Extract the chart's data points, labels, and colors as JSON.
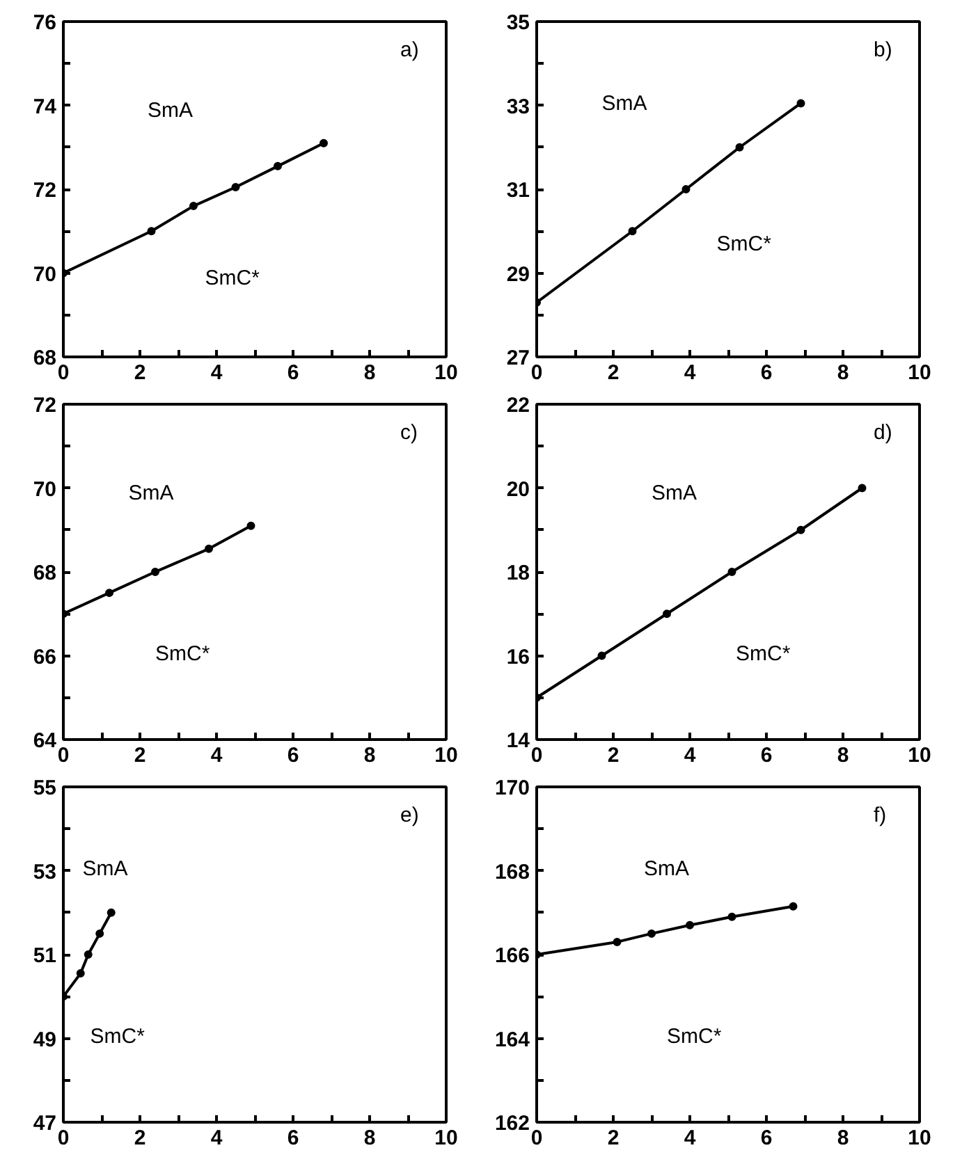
{
  "chart_data": [
    {
      "type": "line",
      "marker": "circle",
      "grid": false,
      "annotations": [
        "SmA",
        "SmC*",
        "a)"
      ],
      "xlim": [
        0,
        10
      ],
      "ylim": [
        68,
        76
      ],
      "xticks": [
        0,
        {
          "value": 1,
          "label": null
        },
        2,
        {
          "value": 3,
          "label": null
        },
        4,
        {
          "value": 5,
          "label": null
        },
        6,
        {
          "value": 7,
          "label": null
        },
        8,
        {
          "value": 9,
          "label": null
        },
        10
      ],
      "yticks": [
        68,
        {
          "value": 69,
          "label": null
        },
        70,
        {
          "value": 71,
          "label": null
        },
        72,
        {
          "value": 73,
          "label": null
        },
        74,
        {
          "value": 75,
          "label": null
        },
        76
      ],
      "series": [
        {
          "color": "#000000",
          "x": [
            0,
            2.3,
            3.4,
            4.5,
            5.6,
            6.8
          ],
          "values": [
            70.0,
            71.0,
            71.6,
            72.05,
            72.55,
            73.1
          ]
        }
      ]
    },
    {
      "type": "line",
      "marker": "circle",
      "grid": false,
      "annotations": [
        "SmA",
        "SmC*",
        "b)"
      ],
      "xlim": [
        0,
        10
      ],
      "ylim": [
        27,
        35
      ],
      "xticks": [
        0,
        {
          "value": 1,
          "label": null
        },
        2,
        {
          "value": 3,
          "label": null
        },
        4,
        {
          "value": 5,
          "label": null
        },
        6,
        {
          "value": 7,
          "label": null
        },
        8,
        {
          "value": 9,
          "label": null
        },
        10
      ],
      "yticks": [
        27,
        {
          "value": 28,
          "label": null
        },
        29,
        {
          "value": 30,
          "label": null
        },
        31,
        {
          "value": 32,
          "label": null
        },
        33,
        {
          "value": 34,
          "label": null
        },
        35
      ],
      "series": [
        {
          "color": "#000000",
          "x": [
            0,
            2.5,
            3.9,
            5.3,
            6.9
          ],
          "values": [
            28.3,
            30.0,
            31.0,
            32.0,
            33.05
          ]
        }
      ]
    },
    {
      "type": "line",
      "marker": "circle",
      "grid": false,
      "annotations": [
        "SmA",
        "SmC*",
        "c)"
      ],
      "xlim": [
        0,
        10
      ],
      "ylim": [
        64,
        72
      ],
      "xticks": [
        0,
        {
          "value": 1,
          "label": null
        },
        2,
        {
          "value": 3,
          "label": null
        },
        4,
        {
          "value": 5,
          "label": null
        },
        6,
        {
          "value": 7,
          "label": null
        },
        8,
        {
          "value": 9,
          "label": null
        },
        10
      ],
      "yticks": [
        64,
        {
          "value": 65,
          "label": null
        },
        66,
        {
          "value": 67,
          "label": null
        },
        68,
        {
          "value": 69,
          "label": null
        },
        70,
        {
          "value": 71,
          "label": null
        },
        72
      ],
      "series": [
        {
          "color": "#000000",
          "x": [
            0,
            1.2,
            2.4,
            3.8,
            4.9
          ],
          "values": [
            67.0,
            67.5,
            68.0,
            68.55,
            69.1
          ]
        }
      ]
    },
    {
      "type": "line",
      "marker": "circle",
      "grid": false,
      "annotations": [
        "SmA",
        "SmC*",
        "d)"
      ],
      "xlim": [
        0,
        10
      ],
      "ylim": [
        14,
        22
      ],
      "xticks": [
        0,
        {
          "value": 1,
          "label": null
        },
        2,
        {
          "value": 3,
          "label": null
        },
        4,
        {
          "value": 5,
          "label": null
        },
        6,
        {
          "value": 7,
          "label": null
        },
        8,
        {
          "value": 9,
          "label": null
        },
        10
      ],
      "yticks": [
        14,
        {
          "value": 15,
          "label": null
        },
        16,
        {
          "value": 17,
          "label": null
        },
        18,
        {
          "value": 19,
          "label": null
        },
        20,
        {
          "value": 21,
          "label": null
        },
        22
      ],
      "series": [
        {
          "color": "#000000",
          "x": [
            0,
            1.7,
            3.4,
            5.1,
            6.9,
            8.5
          ],
          "values": [
            15.0,
            16.0,
            17.0,
            18.0,
            19.0,
            20.0
          ]
        }
      ]
    },
    {
      "type": "line",
      "marker": "circle",
      "grid": false,
      "annotations": [
        "SmA",
        "SmC*",
        "e)"
      ],
      "xlim": [
        0,
        10
      ],
      "ylim": [
        47,
        55
      ],
      "xticks": [
        0,
        {
          "value": 1,
          "label": null
        },
        2,
        {
          "value": 3,
          "label": null
        },
        4,
        {
          "value": 5,
          "label": null
        },
        6,
        {
          "value": 7,
          "label": null
        },
        8,
        {
          "value": 9,
          "label": null
        },
        10
      ],
      "yticks": [
        47,
        {
          "value": 48,
          "label": null
        },
        49,
        {
          "value": 50,
          "label": null
        },
        51,
        {
          "value": 52,
          "label": null
        },
        53,
        {
          "value": 54,
          "label": null
        },
        55
      ],
      "series": [
        {
          "color": "#000000",
          "x": [
            0,
            0.45,
            0.65,
            0.95,
            1.25
          ],
          "values": [
            50.0,
            50.55,
            51.0,
            51.5,
            52.0
          ]
        }
      ]
    },
    {
      "type": "line",
      "marker": "circle",
      "grid": false,
      "annotations": [
        "SmA",
        "SmC*",
        "f)"
      ],
      "xlim": [
        0,
        10
      ],
      "ylim": [
        162,
        170
      ],
      "xticks": [
        0,
        {
          "value": 1,
          "label": null
        },
        2,
        {
          "value": 3,
          "label": null
        },
        4,
        {
          "value": 5,
          "label": null
        },
        6,
        {
          "value": 7,
          "label": null
        },
        8,
        {
          "value": 9,
          "label": null
        },
        10
      ],
      "yticks": [
        162,
        {
          "value": 163,
          "label": null
        },
        164,
        {
          "value": 165,
          "label": null
        },
        166,
        {
          "value": 167,
          "label": null
        },
        168,
        {
          "value": 169,
          "label": null
        },
        170
      ],
      "series": [
        {
          "color": "#000000",
          "x": [
            0,
            2.1,
            3.0,
            4.0,
            5.1,
            6.7
          ],
          "values": [
            166.0,
            166.3,
            166.5,
            166.7,
            166.9,
            167.15
          ]
        }
      ]
    }
  ]
}
